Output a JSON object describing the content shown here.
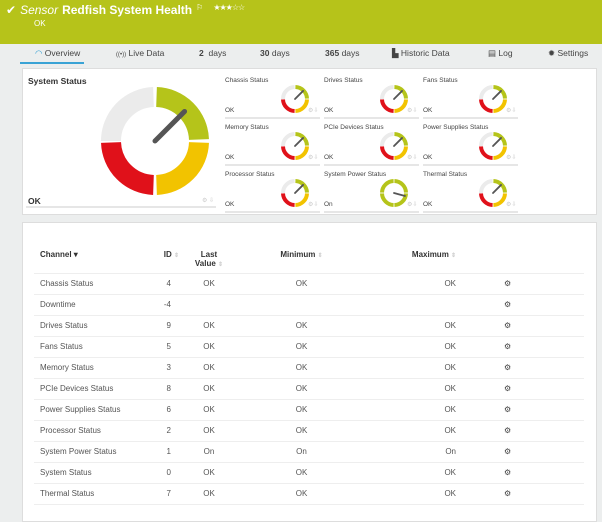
{
  "header": {
    "kind": "Sensor",
    "name": "Redfish System Health",
    "status": "OK",
    "stars": "★★★☆☆",
    "check_icon": "check-icon",
    "flag_icon": "flag-icon",
    "color": "#b6c31a"
  },
  "tabs": [
    {
      "label": "Overview",
      "icon": "gauge-icon"
    },
    {
      "label": "Live Data",
      "icon": "live-icon"
    },
    {
      "num": "2",
      "label": "days"
    },
    {
      "num": "30",
      "label": "days"
    },
    {
      "num": "365",
      "label": "days"
    },
    {
      "label": "Historic Data",
      "icon": "chart-icon"
    },
    {
      "label": "Log",
      "icon": "log-icon"
    },
    {
      "label": "Settings",
      "icon": "gear-icon"
    }
  ],
  "overview": {
    "title": "System Status",
    "value": "OK",
    "gauges": [
      {
        "title": "Chassis Status",
        "value": "OK"
      },
      {
        "title": "Drives Status",
        "value": "OK"
      },
      {
        "title": "Fans Status",
        "value": "OK"
      },
      {
        "title": "Memory Status",
        "value": "OK"
      },
      {
        "title": "PCIe Devices Status",
        "value": "OK"
      },
      {
        "title": "Power Supplies Status",
        "value": "OK"
      },
      {
        "title": "Processor Status",
        "value": "OK"
      },
      {
        "title": "System Power Status",
        "value": "On"
      },
      {
        "title": "Thermal Status",
        "value": "OK"
      }
    ]
  },
  "colors": {
    "green": "#b5c41a",
    "yellow": "#f2c300",
    "red": "#e0111a",
    "gray": "#ebebeb",
    "accent": "#3aa3d5"
  },
  "table": {
    "headers": {
      "channel": "Channel ▾",
      "id": "ID",
      "last1": "Last",
      "last2": "Value",
      "min": "Minimum",
      "max": "Maximum"
    },
    "rows": [
      [
        "Chassis Status",
        "4",
        "OK",
        "OK",
        "OK"
      ],
      [
        "Downtime",
        "-4",
        "",
        "",
        ""
      ],
      [
        "Drives Status",
        "9",
        "OK",
        "OK",
        "OK"
      ],
      [
        "Fans Status",
        "5",
        "OK",
        "OK",
        "OK"
      ],
      [
        "Memory Status",
        "3",
        "OK",
        "OK",
        "OK"
      ],
      [
        "PCIe Devices Status",
        "8",
        "OK",
        "OK",
        "OK"
      ],
      [
        "Power Supplies Status",
        "6",
        "OK",
        "OK",
        "OK"
      ],
      [
        "Processor Status",
        "2",
        "OK",
        "OK",
        "OK"
      ],
      [
        "System Power Status",
        "1",
        "On",
        "On",
        "On"
      ],
      [
        "System Status",
        "0",
        "OK",
        "OK",
        "OK"
      ],
      [
        "Thermal Status",
        "7",
        "OK",
        "OK",
        "OK"
      ]
    ]
  }
}
